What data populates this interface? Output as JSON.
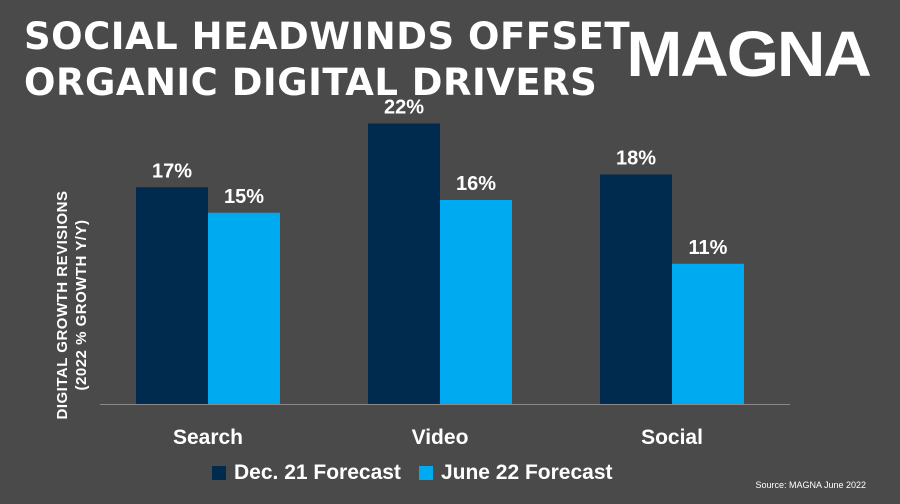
{
  "title_lines": [
    "SOCIAL HEADWINDS OFFSET",
    "ORGANIC DIGITAL DRIVERS"
  ],
  "logo": "MAGNA",
  "source": "Source: MAGNA June 2022",
  "colors": {
    "background": "#4a4a4a",
    "dec": "#002a4e",
    "june": "#00aaf0",
    "text": "#ffffff"
  },
  "chart_data": {
    "type": "bar",
    "categories": [
      "Search",
      "Video",
      "Social"
    ],
    "series": [
      {
        "name": "Dec. 21 Forecast",
        "values": [
          17,
          22,
          18
        ],
        "labels": [
          "17%",
          "22%",
          "18%"
        ],
        "color": "#002a4e"
      },
      {
        "name": "June 22 Forecast",
        "values": [
          15,
          16,
          11
        ],
        "labels": [
          "15%",
          "16%",
          "11%"
        ],
        "color": "#00aaf0"
      }
    ],
    "ylabel_lines": [
      "DIGITAL GROWTH REVISIONS",
      "(2022 % GROWTH Y/Y)"
    ],
    "ylim": [
      0,
      24
    ],
    "grid": false,
    "legend_position": "bottom"
  }
}
